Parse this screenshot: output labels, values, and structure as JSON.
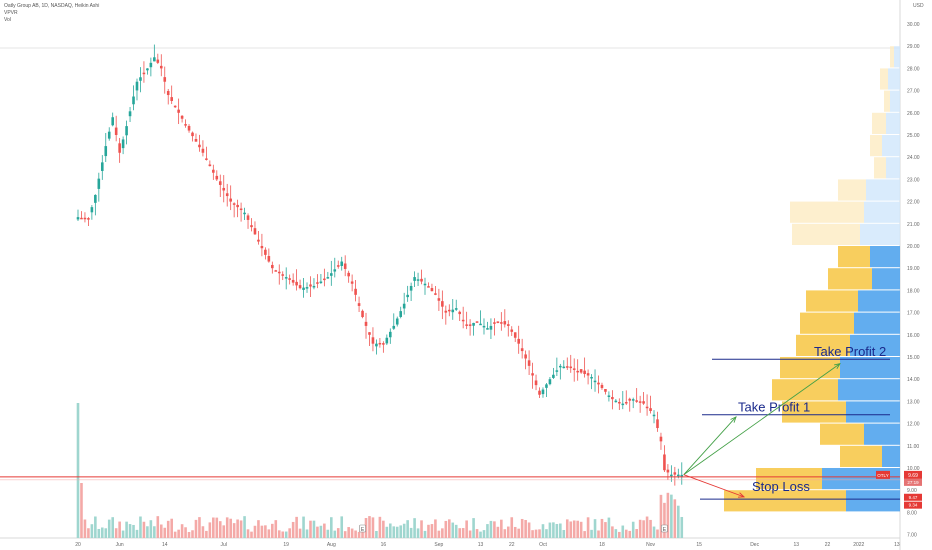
{
  "header": {
    "title": "Oatly Group AB, 1D, NASDAQ, Heikin Ashi",
    "indicator_1": "VPVR",
    "indicator_2": "Vol"
  },
  "axis": {
    "currency": "USD",
    "price_ticks": [
      "30.00",
      "29.00",
      "28.00",
      "27.00",
      "26.00",
      "25.00",
      "24.00",
      "23.00",
      "22.00",
      "21.00",
      "20.00",
      "19.00",
      "18.00",
      "17.00",
      "16.00",
      "15.00",
      "14.00",
      "13.00",
      "12.00",
      "11.00",
      "10.00",
      "9.00",
      "8.00",
      "7.00"
    ],
    "date_ticks": [
      {
        "label": "20",
        "day": 0
      },
      {
        "label": "Jun",
        "day": 12
      },
      {
        "label": "14",
        "day": 25
      },
      {
        "label": "Jul",
        "day": 42
      },
      {
        "label": "19",
        "day": 60
      },
      {
        "label": "Aug",
        "day": 73
      },
      {
        "label": "16",
        "day": 88
      },
      {
        "label": "Sep",
        "day": 104
      },
      {
        "label": "13",
        "day": 116
      },
      {
        "label": "22",
        "day": 125
      },
      {
        "label": "Oct",
        "day": 134
      },
      {
        "label": "18",
        "day": 151
      },
      {
        "label": "Nov",
        "day": 165
      },
      {
        "label": "15",
        "day": 179
      },
      {
        "label": "Dec",
        "day": 195
      },
      {
        "label": "13",
        "day": 207
      },
      {
        "label": "22",
        "day": 216
      },
      {
        "label": "2022",
        "day": 225
      },
      {
        "label": "13",
        "day": 236
      }
    ]
  },
  "price_labels": {
    "current": "9.69",
    "current_tag": "OTLY",
    "countdown": "27:19",
    "level_1": "9.47",
    "level_2": "9.34"
  },
  "annotations": {
    "take_profit_2": "Take Profit 2",
    "take_profit_1": "Take Profit 1",
    "stop_loss": "Stop Loss",
    "earnings_marker": "E"
  },
  "colors": {
    "up": "#26a69a",
    "down": "#ef5350",
    "annotation": "#1a2a8c",
    "support_line": "#e53935",
    "volume_up": "#9fd6cf",
    "volume_down": "#f4a9a7"
  },
  "chart_data": {
    "type": "candlestick",
    "symbol": "OTLY",
    "timeframe": "1D",
    "candle_type": "Heikin Ashi",
    "levels": {
      "take_profit_2": 14.9,
      "take_profit_1": 12.4,
      "stop_loss": 8.6,
      "support": 9.6
    },
    "price_path": [
      [
        0,
        21.3
      ],
      [
        3,
        21.2
      ],
      [
        5,
        22.3
      ],
      [
        8,
        24.5
      ],
      [
        10,
        25.8
      ],
      [
        12,
        24.2
      ],
      [
        14,
        25.4
      ],
      [
        17,
        27.4
      ],
      [
        20,
        28.0
      ],
      [
        22,
        28.5
      ],
      [
        24,
        28.0
      ],
      [
        26,
        26.8
      ],
      [
        29,
        26.0
      ],
      [
        32,
        25.2
      ],
      [
        36,
        24.2
      ],
      [
        40,
        23.0
      ],
      [
        44,
        22.0
      ],
      [
        48,
        21.5
      ],
      [
        52,
        20.2
      ],
      [
        56,
        19.0
      ],
      [
        60,
        18.6
      ],
      [
        64,
        18.1
      ],
      [
        68,
        18.2
      ],
      [
        72,
        18.6
      ],
      [
        76,
        19.3
      ],
      [
        79,
        18.3
      ],
      [
        82,
        16.8
      ],
      [
        85,
        15.6
      ],
      [
        88,
        15.6
      ],
      [
        91,
        16.4
      ],
      [
        94,
        17.4
      ],
      [
        97,
        18.6
      ],
      [
        100,
        18.3
      ],
      [
        103,
        17.8
      ],
      [
        106,
        17.0
      ],
      [
        109,
        17.2
      ],
      [
        112,
        16.4
      ],
      [
        115,
        16.6
      ],
      [
        118,
        16.3
      ],
      [
        121,
        16.6
      ],
      [
        124,
        16.4
      ],
      [
        127,
        15.6
      ],
      [
        130,
        14.6
      ],
      [
        133,
        13.3
      ],
      [
        136,
        14.0
      ],
      [
        139,
        14.6
      ],
      [
        142,
        14.5
      ],
      [
        145,
        14.3
      ],
      [
        148,
        14.1
      ],
      [
        151,
        13.6
      ],
      [
        154,
        13.1
      ],
      [
        157,
        12.9
      ],
      [
        160,
        13.1
      ],
      [
        163,
        12.9
      ],
      [
        166,
        12.4
      ],
      [
        168,
        11.2
      ],
      [
        169,
        9.9
      ],
      [
        171,
        9.7
      ],
      [
        173,
        9.7
      ],
      [
        174,
        9.69
      ]
    ],
    "volume_profile_note": "VPVR horizontal histogram, buy (blue) / sell (yellow) split"
  }
}
